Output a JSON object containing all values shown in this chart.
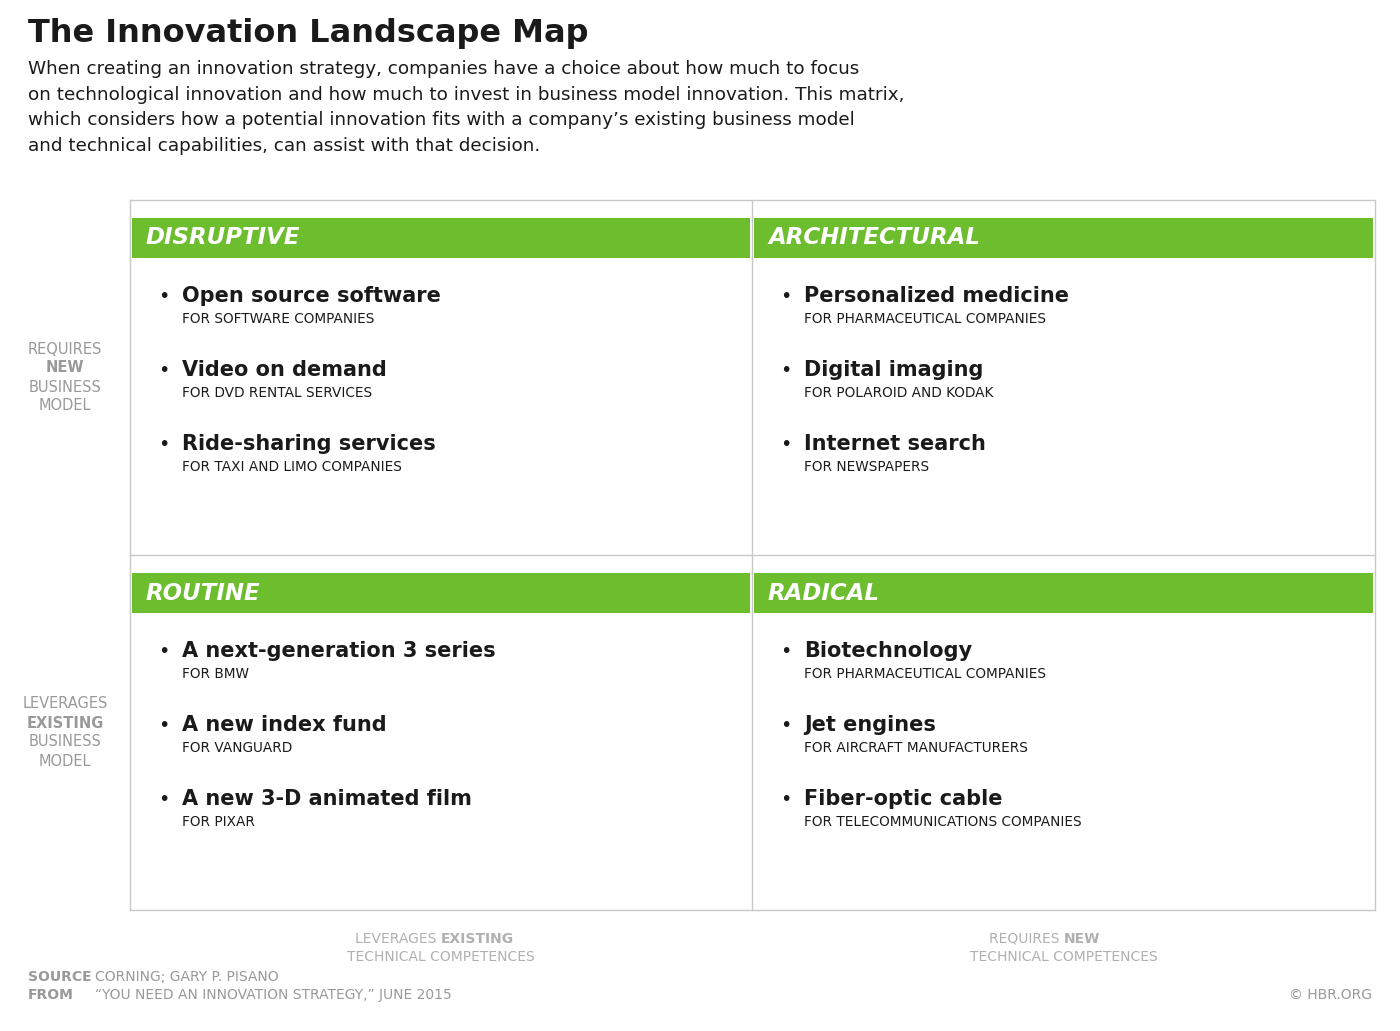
{
  "title": "The Innovation Landscape Map",
  "subtitle": "When creating an innovation strategy, companies have a choice about how much to focus\non technological innovation and how much to invest in business model innovation. This matrix,\nwhich considers how a potential innovation fits with a company’s existing business model\nand technical capabilities, can assist with that decision.",
  "green_color": "#6dbe2e",
  "white_color": "#ffffff",
  "bg_color": "#ffffff",
  "text_dark": "#1a1a1a",
  "text_gray": "#999999",
  "text_gray2": "#b0b0b0",
  "divider_color": "#c8c8c8",
  "quadrants": [
    {
      "label": "DISRUPTIVE",
      "items": [
        {
          "main": "Open source software",
          "sub": "FOR SOFTWARE COMPANIES"
        },
        {
          "main": "Video on demand",
          "sub": "FOR DVD RENTAL SERVICES"
        },
        {
          "main": "Ride-sharing services",
          "sub": "FOR TAXI AND LIMO COMPANIES"
        }
      ],
      "col": 0,
      "row": 0
    },
    {
      "label": "ARCHITECTURAL",
      "items": [
        {
          "main": "Personalized medicine",
          "sub": "FOR PHARMACEUTICAL COMPANIES"
        },
        {
          "main": "Digital imaging",
          "sub": "FOR POLAROID AND KODAK"
        },
        {
          "main": "Internet search",
          "sub": "FOR NEWSPAPERS"
        }
      ],
      "col": 1,
      "row": 0
    },
    {
      "label": "ROUTINE",
      "items": [
        {
          "main": "A next-generation 3 series",
          "sub": "FOR BMW"
        },
        {
          "main": "A new index fund",
          "sub": "FOR VANGUARD"
        },
        {
          "main": "A new 3-D animated film",
          "sub": "FOR PIXAR"
        }
      ],
      "col": 0,
      "row": 1
    },
    {
      "label": "RADICAL",
      "items": [
        {
          "main": "Biotechnology",
          "sub": "FOR PHARMACEUTICAL COMPANIES"
        },
        {
          "main": "Jet engines",
          "sub": "FOR AIRCRAFT MANUFACTURERS"
        },
        {
          "main": "Fiber-optic cable",
          "sub": "FOR TELECOMMUNICATIONS COMPANIES"
        }
      ],
      "col": 1,
      "row": 1
    }
  ],
  "left_labels_top": [
    "REQUIRES",
    "NEW",
    "BUSINESS",
    "MODEL"
  ],
  "left_labels_top_bold": [
    false,
    true,
    false,
    false
  ],
  "left_labels_bottom": [
    "LEVERAGES",
    "EXISTING",
    "BUSINESS",
    "MODEL"
  ],
  "left_labels_bottom_bold": [
    false,
    true,
    false,
    false
  ],
  "source_bold": "SOURCE",
  "source_content": "CORNING; GARY P. PISANO",
  "from_bold": "FROM",
  "from_content": "“YOU NEED AN INNOVATION STRATEGY,” JUNE 2015",
  "copyright_text": "© HBR.ORG"
}
